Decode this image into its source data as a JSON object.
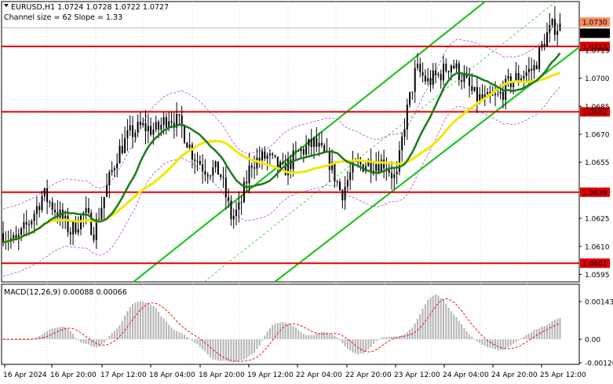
{
  "header": {
    "symbol_line": "EURUSD,H1  1.0724 1.0728 1.0722 1.0727",
    "channel_line": "Channel size = 62 Slope = 1.33"
  },
  "macd": {
    "label": "MACD(12,26,9) 0.00088 0.00066",
    "axis": [
      "0.00143",
      "0.00",
      "-0.00126"
    ]
  },
  "price_axis": {
    "ticks": [
      "1.0715",
      "1.0700",
      "1.0685",
      "1.0670",
      "1.0655",
      "1.0625",
      "1.0610",
      "1.0595"
    ],
    "tick_values": [
      1.0715,
      1.07,
      1.0685,
      1.067,
      1.0655,
      1.0625,
      1.061,
      1.0595
    ],
    "range": [
      1.0591,
      1.0741
    ],
    "current_price": "1.0727",
    "top_label": "1.0730"
  },
  "levels": [
    {
      "label": "1.0717",
      "value": 1.0717
    },
    {
      "label": "1.0682",
      "value": 1.0682
    },
    {
      "label": "1.0639",
      "value": 1.0639
    },
    {
      "label": "1.0601",
      "value": 1.0601
    }
  ],
  "time_axis": [
    "16 Apr 2024",
    "16 Apr 20:00",
    "17 Apr 12:00",
    "18 Apr 04:00",
    "18 Apr 20:00",
    "19 Apr 12:00",
    "22 Apr 04:00",
    "22 Apr 20:00",
    "23 Apr 12:00",
    "24 Apr 04:00",
    "24 Apr 20:00",
    "25 Apr 12:00"
  ],
  "colors": {
    "level": "#e00000",
    "channel": "#22c322",
    "ma_fast": "#1c7a1c",
    "ma_slow": "#f2e600",
    "envelope": "#b04ad0",
    "candle": "#000000",
    "macd_hist": "#b4b4b4",
    "macd_signal": "#e00000",
    "price_tag": "#e00000"
  }
}
